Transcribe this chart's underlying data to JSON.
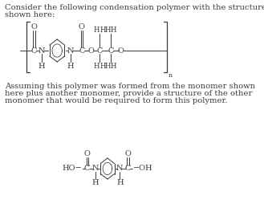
{
  "bg_color": "#ffffff",
  "text_color": "#3a3a3a",
  "title_line1": "Consider the following condensation polymer with the structure",
  "title_line2": "shown here:",
  "body_text": "Assuming this polymer was formed from the monomer shown\nhere plus another monomer, provide a structure of the other\nmonomer that would be required to form this polymer.",
  "font_size_text": 7.2,
  "font_size_chem": 7.0,
  "font_size_small": 6.2
}
